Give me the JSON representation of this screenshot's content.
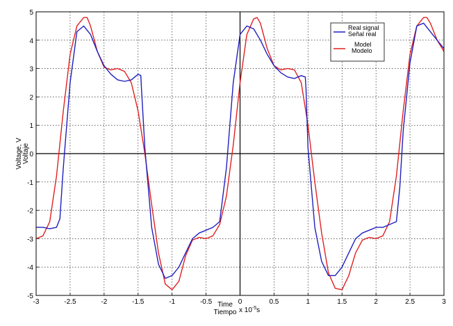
{
  "chart_data": {
    "type": "line",
    "xlabel": [
      "Time",
      "Tiempo"
    ],
    "xlabel_unit": "x 10",
    "xlabel_exponent": "-5",
    "xlabel_suffix": "s",
    "ylabel": [
      "Voltage, V",
      "Voltaje"
    ],
    "xlim": [
      -3,
      3
    ],
    "ylim": [
      -5,
      5
    ],
    "xticks": [
      -3,
      -2.5,
      -2,
      -1.5,
      -1,
      -0.5,
      0,
      0.5,
      1,
      1.5,
      2,
      2.5,
      3
    ],
    "xtick_labels": [
      "-3",
      "-2.5",
      "-2",
      "-1.5",
      "-1",
      "-0.5",
      "0",
      "0.5",
      "1",
      "1.5",
      "2",
      "2.5",
      "3"
    ],
    "yticks": [
      -5,
      -4,
      -3,
      -2,
      -1,
      0,
      1,
      2,
      3,
      4,
      5
    ],
    "ytick_labels": [
      "-5",
      "-4",
      "-3",
      "-2",
      "-1",
      "0",
      "1",
      "2",
      "3",
      "4",
      "5"
    ],
    "grid": true,
    "legend_position": "top-right",
    "series": [
      {
        "name": "Real signal / Señal real",
        "legend_lines": [
          "Real signal",
          "Señal real"
        ],
        "color": "#1f1fbf",
        "x": [
          -3.0,
          -2.9,
          -2.8,
          -2.7,
          -2.65,
          -2.6,
          -2.5,
          -2.4,
          -2.3,
          -2.2,
          -2.1,
          -2.0,
          -1.9,
          -1.8,
          -1.7,
          -1.6,
          -1.5,
          -1.46,
          -1.45,
          -1.4,
          -1.3,
          -1.2,
          -1.1,
          -1.0,
          -0.9,
          -0.8,
          -0.7,
          -0.6,
          -0.5,
          -0.4,
          -0.3,
          -0.2,
          -0.1,
          0.0,
          0.1,
          0.2,
          0.3,
          0.4,
          0.5,
          0.6,
          0.7,
          0.8,
          0.9,
          0.96,
          0.97,
          1.0,
          1.1,
          1.2,
          1.3,
          1.4,
          1.5,
          1.6,
          1.7,
          1.8,
          1.9,
          2.0,
          2.1,
          2.2,
          2.3,
          2.35,
          2.4,
          2.5,
          2.6,
          2.7,
          2.8,
          2.9,
          3.0
        ],
        "values": [
          -2.6,
          -2.6,
          -2.65,
          -2.6,
          -2.3,
          -0.5,
          2.5,
          4.3,
          4.5,
          4.2,
          3.6,
          3.1,
          2.8,
          2.6,
          2.55,
          2.6,
          2.8,
          2.75,
          2.3,
          0.2,
          -2.6,
          -3.9,
          -4.4,
          -4.3,
          -4.0,
          -3.5,
          -3.0,
          -2.8,
          -2.7,
          -2.6,
          -2.4,
          -0.5,
          2.5,
          4.2,
          4.5,
          4.4,
          4.0,
          3.5,
          3.1,
          2.85,
          2.7,
          2.65,
          2.75,
          2.7,
          2.3,
          0.2,
          -2.6,
          -3.8,
          -4.3,
          -4.3,
          -4.0,
          -3.5,
          -3.0,
          -2.8,
          -2.7,
          -2.6,
          -2.6,
          -2.5,
          -2.4,
          -1.2,
          0.8,
          3.2,
          4.5,
          4.6,
          4.3,
          4.0,
          3.7
        ]
      },
      {
        "name": "Model / Modelo",
        "legend_lines": [
          "Model",
          "Modelo"
        ],
        "color": "#e02020",
        "x": [
          -3.0,
          -2.9,
          -2.8,
          -2.7,
          -2.6,
          -2.5,
          -2.4,
          -2.3,
          -2.25,
          -2.2,
          -2.1,
          -2.0,
          -1.9,
          -1.8,
          -1.7,
          -1.6,
          -1.5,
          -1.4,
          -1.3,
          -1.2,
          -1.1,
          -1.0,
          -0.9,
          -0.8,
          -0.7,
          -0.6,
          -0.5,
          -0.4,
          -0.3,
          -0.2,
          -0.1,
          0.0,
          0.1,
          0.2,
          0.25,
          0.3,
          0.4,
          0.5,
          0.6,
          0.7,
          0.8,
          0.9,
          1.0,
          1.1,
          1.2,
          1.3,
          1.4,
          1.5,
          1.6,
          1.7,
          1.8,
          1.9,
          2.0,
          2.1,
          2.2,
          2.3,
          2.4,
          2.5,
          2.6,
          2.7,
          2.75,
          2.8,
          2.9,
          3.0
        ],
        "values": [
          -3.0,
          -2.9,
          -2.4,
          -0.8,
          1.5,
          3.5,
          4.5,
          4.8,
          4.8,
          4.5,
          3.6,
          3.05,
          2.95,
          3.0,
          2.9,
          2.5,
          1.5,
          0.0,
          -1.8,
          -3.5,
          -4.6,
          -4.8,
          -4.5,
          -3.6,
          -3.05,
          -2.95,
          -3.0,
          -2.9,
          -2.5,
          -1.5,
          0.3,
          2.5,
          4.2,
          4.75,
          4.8,
          4.6,
          3.7,
          3.1,
          2.95,
          3.0,
          2.95,
          2.5,
          1.0,
          -1.0,
          -2.8,
          -4.2,
          -4.75,
          -4.8,
          -4.3,
          -3.5,
          -3.05,
          -2.95,
          -3.0,
          -2.9,
          -2.4,
          -0.8,
          1.5,
          3.5,
          4.5,
          4.8,
          4.8,
          4.6,
          4.0,
          3.6
        ]
      }
    ]
  }
}
